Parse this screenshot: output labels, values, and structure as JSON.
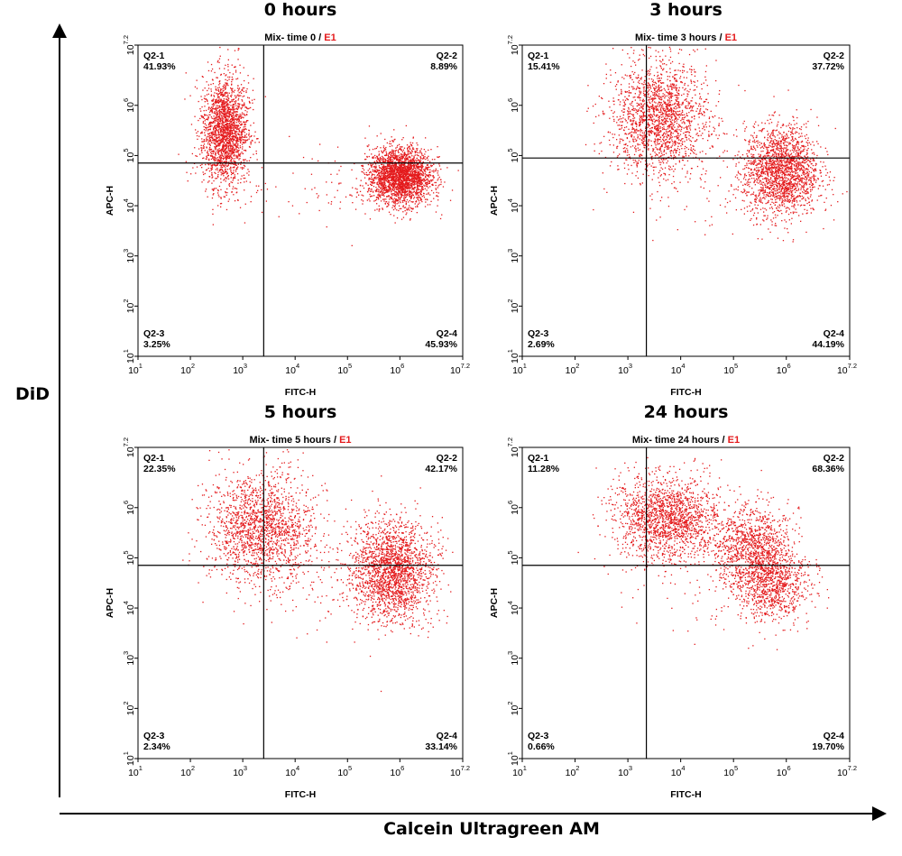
{
  "figure": {
    "y_axis_label": "DiD",
    "x_axis_label": "Calcein Ultragreen AM"
  },
  "colors": {
    "dots": "#e41a1c",
    "axes": "#000000",
    "gate_lines": "#000000"
  },
  "chart_data": [
    {
      "type": "scatter",
      "title": "0 hours",
      "subtitle": "Mix- time 0 / E1",
      "subtitle_prefix": "Mix- time 0 / ",
      "subtitle_suffix": "E1",
      "xlabel": "FITC-H",
      "ylabel": "APC-H",
      "x_scale": "log",
      "y_scale": "log",
      "x_ticks": [
        {
          "base": "10",
          "exp": "1"
        },
        {
          "base": "10",
          "exp": "2"
        },
        {
          "base": "10",
          "exp": "3"
        },
        {
          "base": "10",
          "exp": "4"
        },
        {
          "base": "10",
          "exp": "5"
        },
        {
          "base": "10",
          "exp": "6"
        },
        {
          "base": "10",
          "exp": "7.2"
        }
      ],
      "y_ticks": [
        {
          "base": "10",
          "exp": "1"
        },
        {
          "base": "10",
          "exp": "2"
        },
        {
          "base": "10",
          "exp": "3"
        },
        {
          "base": "10",
          "exp": "4"
        },
        {
          "base": "10",
          "exp": "5"
        },
        {
          "base": "10",
          "exp": "6"
        },
        {
          "base": "10",
          "exp": "7.2"
        }
      ],
      "xlim_log10": [
        1,
        7.2
      ],
      "ylim_log10": [
        1,
        7.2
      ],
      "gate_log10": {
        "x": 3.4,
        "y": 4.85
      },
      "quadrants": [
        {
          "name": "Q2-1",
          "percent": "41.93%",
          "pos": "top-left"
        },
        {
          "name": "Q2-2",
          "percent": "8.89%",
          "pos": "top-right"
        },
        {
          "name": "Q2-3",
          "percent": "3.25%",
          "pos": "bottom-left"
        },
        {
          "name": "Q2-4",
          "percent": "45.93%",
          "pos": "bottom-right"
        }
      ],
      "populations_log10": [
        {
          "cx": 2.65,
          "cy": 5.5,
          "sx": 0.22,
          "sy": 0.55,
          "n": 2000
        },
        {
          "cx": 6.0,
          "cy": 4.6,
          "sx": 0.3,
          "sy": 0.28,
          "n": 2400
        },
        {
          "cx": 5.0,
          "cy": 4.4,
          "sx": 1.0,
          "sy": 0.35,
          "n": 100
        }
      ]
    },
    {
      "type": "scatter",
      "title": "3 hours",
      "subtitle": "Mix- time 3 hours / E1",
      "subtitle_prefix": "Mix- time 3 hours / ",
      "subtitle_suffix": "E1",
      "xlabel": "FITC-H",
      "ylabel": "APC-H",
      "x_scale": "log",
      "y_scale": "log",
      "x_ticks": [
        {
          "base": "10",
          "exp": "1"
        },
        {
          "base": "10",
          "exp": "2"
        },
        {
          "base": "10",
          "exp": "3"
        },
        {
          "base": "10",
          "exp": "4"
        },
        {
          "base": "10",
          "exp": "5"
        },
        {
          "base": "10",
          "exp": "6"
        },
        {
          "base": "10",
          "exp": "7.2"
        }
      ],
      "y_ticks": [
        {
          "base": "10",
          "exp": "1"
        },
        {
          "base": "10",
          "exp": "2"
        },
        {
          "base": "10",
          "exp": "3"
        },
        {
          "base": "10",
          "exp": "4"
        },
        {
          "base": "10",
          "exp": "5"
        },
        {
          "base": "10",
          "exp": "6"
        },
        {
          "base": "10",
          "exp": "7.2"
        }
      ],
      "xlim_log10": [
        1,
        7.2
      ],
      "ylim_log10": [
        1,
        7.2
      ],
      "gate_log10": {
        "x": 3.35,
        "y": 4.95
      },
      "quadrants": [
        {
          "name": "Q2-1",
          "percent": "15.41%",
          "pos": "top-left"
        },
        {
          "name": "Q2-2",
          "percent": "37.72%",
          "pos": "top-right"
        },
        {
          "name": "Q2-3",
          "percent": "2.69%",
          "pos": "bottom-left"
        },
        {
          "name": "Q2-4",
          "percent": "44.19%",
          "pos": "bottom-right"
        }
      ],
      "populations_log10": [
        {
          "cx": 3.6,
          "cy": 5.75,
          "sx": 0.45,
          "sy": 0.55,
          "n": 1800
        },
        {
          "cx": 5.9,
          "cy": 4.7,
          "sx": 0.35,
          "sy": 0.45,
          "n": 1900
        },
        {
          "cx": 4.8,
          "cy": 4.5,
          "sx": 0.9,
          "sy": 0.5,
          "n": 100
        }
      ]
    },
    {
      "type": "scatter",
      "title": "5 hours",
      "subtitle": "Mix- time 5 hours / E1",
      "subtitle_prefix": "Mix- time 5 hours / ",
      "subtitle_suffix": "E1",
      "xlabel": "FITC-H",
      "ylabel": "APC-H",
      "x_scale": "log",
      "y_scale": "log",
      "x_ticks": [
        {
          "base": "10",
          "exp": "1"
        },
        {
          "base": "10",
          "exp": "2"
        },
        {
          "base": "10",
          "exp": "3"
        },
        {
          "base": "10",
          "exp": "4"
        },
        {
          "base": "10",
          "exp": "5"
        },
        {
          "base": "10",
          "exp": "6"
        },
        {
          "base": "10",
          "exp": "7.2"
        }
      ],
      "y_ticks": [
        {
          "base": "10",
          "exp": "1"
        },
        {
          "base": "10",
          "exp": "2"
        },
        {
          "base": "10",
          "exp": "3"
        },
        {
          "base": "10",
          "exp": "4"
        },
        {
          "base": "10",
          "exp": "5"
        },
        {
          "base": "10",
          "exp": "6"
        },
        {
          "base": "10",
          "exp": "7.2"
        }
      ],
      "xlim_log10": [
        1,
        7.2
      ],
      "ylim_log10": [
        1,
        7.2
      ],
      "gate_log10": {
        "x": 3.4,
        "y": 4.85
      },
      "quadrants": [
        {
          "name": "Q2-1",
          "percent": "22.35%",
          "pos": "top-left"
        },
        {
          "name": "Q2-2",
          "percent": "42.17%",
          "pos": "top-right"
        },
        {
          "name": "Q2-3",
          "percent": "2.34%",
          "pos": "bottom-left"
        },
        {
          "name": "Q2-4",
          "percent": "33.14%",
          "pos": "bottom-right"
        }
      ],
      "populations_log10": [
        {
          "cx": 3.35,
          "cy": 5.6,
          "sx": 0.5,
          "sy": 0.55,
          "n": 1700
        },
        {
          "cx": 5.85,
          "cy": 4.75,
          "sx": 0.38,
          "sy": 0.5,
          "n": 2000
        },
        {
          "cx": 4.8,
          "cy": 4.6,
          "sx": 0.9,
          "sy": 0.6,
          "n": 120
        }
      ]
    },
    {
      "type": "scatter",
      "title": "24 hours",
      "subtitle": "Mix- time 24 hours / E1",
      "subtitle_prefix": "Mix- time 24 hours / ",
      "subtitle_suffix": "E1",
      "xlabel": "FITC-H",
      "ylabel": "APC-H",
      "x_scale": "log",
      "y_scale": "log",
      "x_ticks": [
        {
          "base": "10",
          "exp": "1"
        },
        {
          "base": "10",
          "exp": "2"
        },
        {
          "base": "10",
          "exp": "3"
        },
        {
          "base": "10",
          "exp": "4"
        },
        {
          "base": "10",
          "exp": "5"
        },
        {
          "base": "10",
          "exp": "6"
        },
        {
          "base": "10",
          "exp": "7.2"
        }
      ],
      "y_ticks": [
        {
          "base": "10",
          "exp": "1"
        },
        {
          "base": "10",
          "exp": "2"
        },
        {
          "base": "10",
          "exp": "3"
        },
        {
          "base": "10",
          "exp": "4"
        },
        {
          "base": "10",
          "exp": "5"
        },
        {
          "base": "10",
          "exp": "6"
        },
        {
          "base": "10",
          "exp": "7.2"
        }
      ],
      "xlim_log10": [
        1,
        7.2
      ],
      "ylim_log10": [
        1,
        7.2
      ],
      "gate_log10": {
        "x": 3.35,
        "y": 4.85
      },
      "quadrants": [
        {
          "name": "Q2-1",
          "percent": "11.28%",
          "pos": "top-left"
        },
        {
          "name": "Q2-2",
          "percent": "68.36%",
          "pos": "top-right"
        },
        {
          "name": "Q2-3",
          "percent": "0.66%",
          "pos": "bottom-left"
        },
        {
          "name": "Q2-4",
          "percent": "19.70%",
          "pos": "bottom-right"
        }
      ],
      "populations_log10": [
        {
          "cx": 3.75,
          "cy": 5.8,
          "sx": 0.5,
          "sy": 0.4,
          "n": 1700
        },
        {
          "cx": 5.35,
          "cy": 5.2,
          "sx": 0.35,
          "sy": 0.4,
          "n": 1100
        },
        {
          "cx": 5.75,
          "cy": 4.45,
          "sx": 0.35,
          "sy": 0.35,
          "n": 800
        },
        {
          "cx": 4.5,
          "cy": 4.8,
          "sx": 0.9,
          "sy": 0.7,
          "n": 120
        }
      ]
    }
  ]
}
